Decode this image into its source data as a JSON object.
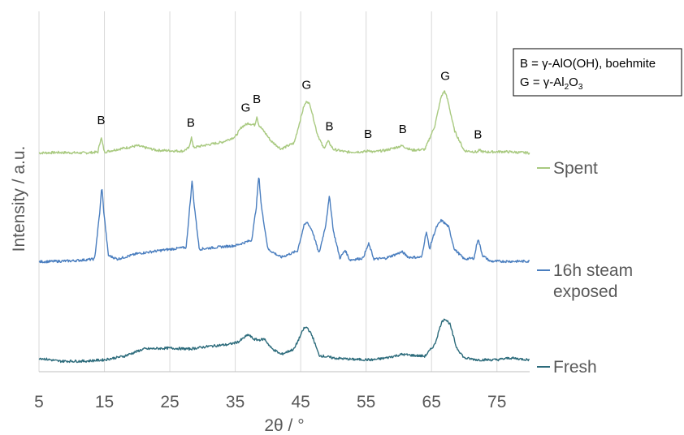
{
  "chart_data": {
    "type": "line",
    "xlabel": "2θ / °",
    "ylabel": "Intensity / a.u.",
    "xlim": [
      5,
      80
    ],
    "x_ticks": [
      5,
      15,
      25,
      35,
      45,
      55,
      65,
      75
    ],
    "x_tick_labels": [
      "5",
      "15",
      "25",
      "35",
      "45",
      "55",
      "65",
      "75"
    ],
    "grid": "vertical",
    "legend_position": "right",
    "colors": {
      "Spent": "#a8c97f",
      "16h steam exposed": "#4a7ebf",
      "Fresh": "#2c6b7b",
      "grid": "#d9d9d9",
      "axis": "#bfbfbf"
    },
    "series": [
      {
        "name": "Spent",
        "x": [
          5,
          8,
          12,
          14,
          14.5,
          15,
          17,
          20,
          23,
          27,
          28,
          28.3,
          28.6,
          30,
          33,
          35,
          36,
          37,
          38,
          38.3,
          38.6,
          39.5,
          40.5,
          42,
          44,
          45.5,
          46,
          46.5,
          47.5,
          48.5,
          49.2,
          50,
          52,
          55,
          55.5,
          56,
          58,
          60.5,
          62,
          64,
          65.5,
          66.5,
          67,
          67.5,
          68.5,
          70,
          72,
          72.3,
          73,
          76,
          80
        ],
        "y": [
          1,
          1.1,
          1,
          1.2,
          4.5,
          1.2,
          1.8,
          2.6,
          1.6,
          1.4,
          2.2,
          4.8,
          2.2,
          2.6,
          3.4,
          4.6,
          6.8,
          7.6,
          7.2,
          9.2,
          7.2,
          5.6,
          3.6,
          1.9,
          3.2,
          11.4,
          12.6,
          11.4,
          5.4,
          2,
          3.6,
          1.8,
          1.2,
          1.3,
          1.6,
          1.2,
          1.6,
          2.6,
          1.6,
          1.8,
          7,
          13.6,
          14.8,
          12.6,
          6,
          1.5,
          1.2,
          1.6,
          1.2,
          1.3,
          1
        ]
      },
      {
        "name": "16h steam exposed",
        "x": [
          5,
          10,
          13.5,
          14.3,
          14.6,
          14.9,
          15.6,
          17,
          20,
          24,
          27.5,
          28.1,
          28.4,
          28.7,
          29.5,
          32,
          35,
          37.5,
          38.2,
          38.6,
          39,
          40,
          42,
          44.5,
          45.5,
          46,
          46.8,
          47.8,
          48.8,
          49.4,
          50,
          51,
          51.8,
          52.5,
          54.5,
          55.4,
          56.2,
          58,
          60.5,
          61.5,
          63.5,
          64.2,
          64.7,
          65.2,
          65.8,
          66.5,
          67,
          67.6,
          68.5,
          70,
          71.5,
          72.1,
          72.8,
          74,
          77,
          80
        ],
        "y": [
          0.8,
          1,
          1.4,
          12,
          17.6,
          12,
          2.2,
          1.4,
          2.6,
          3.4,
          4,
          13.8,
          18.8,
          13.8,
          3.6,
          4,
          4.4,
          5.6,
          12.8,
          20,
          13,
          3.6,
          1.8,
          3.2,
          8.8,
          9.6,
          7.6,
          2.6,
          8.8,
          15.4,
          7.6,
          1.6,
          3.4,
          1.2,
          1.6,
          4.8,
          1.4,
          1.6,
          3,
          1.8,
          1.8,
          7.6,
          3.6,
          6.2,
          8.6,
          10,
          9.4,
          8.6,
          3.6,
          1.4,
          1.6,
          6,
          2.2,
          0.9,
          0.9,
          0.9
        ]
      },
      {
        "name": "Fresh",
        "x": [
          5,
          8,
          12,
          15,
          18,
          21,
          25,
          28,
          31,
          34,
          35.5,
          37,
          37.8,
          38.5,
          39.5,
          40.5,
          42,
          44,
          45.5,
          46,
          46.8,
          47.8,
          50,
          53,
          56,
          58,
          60.5,
          62,
          64,
          65.5,
          66.5,
          67,
          67.8,
          68.8,
          70,
          72,
          75,
          77,
          80
        ],
        "y": [
          1.6,
          0.9,
          0.9,
          1.2,
          2,
          3.6,
          3.8,
          3.6,
          4.2,
          4.6,
          5.2,
          6.8,
          5.8,
          5.6,
          5.8,
          3.8,
          2.4,
          3.6,
          8.2,
          8.4,
          6.4,
          2.2,
          1.6,
          1.3,
          1.2,
          1.6,
          2.4,
          2.2,
          2,
          4.6,
          9.4,
          10.4,
          9.2,
          4,
          1.6,
          1.2,
          1.2,
          1.6,
          1.2
        ]
      }
    ],
    "legend": [
      {
        "name": "Spent",
        "label_lines": [
          "Spent"
        ]
      },
      {
        "name": "16h steam exposed",
        "label_lines": [
          "16h steam",
          "exposed"
        ]
      },
      {
        "name": "Fresh",
        "label_lines": [
          "Fresh"
        ]
      }
    ],
    "annotations": [
      {
        "text": "B",
        "x": 14.5
      },
      {
        "text": "B",
        "x": 28.2
      },
      {
        "text": "G",
        "x": 36.6
      },
      {
        "text": "B",
        "x": 38.3
      },
      {
        "text": "G",
        "x": 45.9
      },
      {
        "text": "B",
        "x": 49.4
      },
      {
        "text": "B",
        "x": 55.3
      },
      {
        "text": "B",
        "x": 60.6
      },
      {
        "text": "G",
        "x": 67.1
      },
      {
        "text": "B",
        "x": 72.1
      }
    ],
    "key_box": {
      "line1": "B = γ-AlO(OH), boehmite",
      "line2_prefix": "G = γ-Al",
      "line2_sub1": "2",
      "line2_mid": "O",
      "line2_sub2": "3"
    }
  }
}
